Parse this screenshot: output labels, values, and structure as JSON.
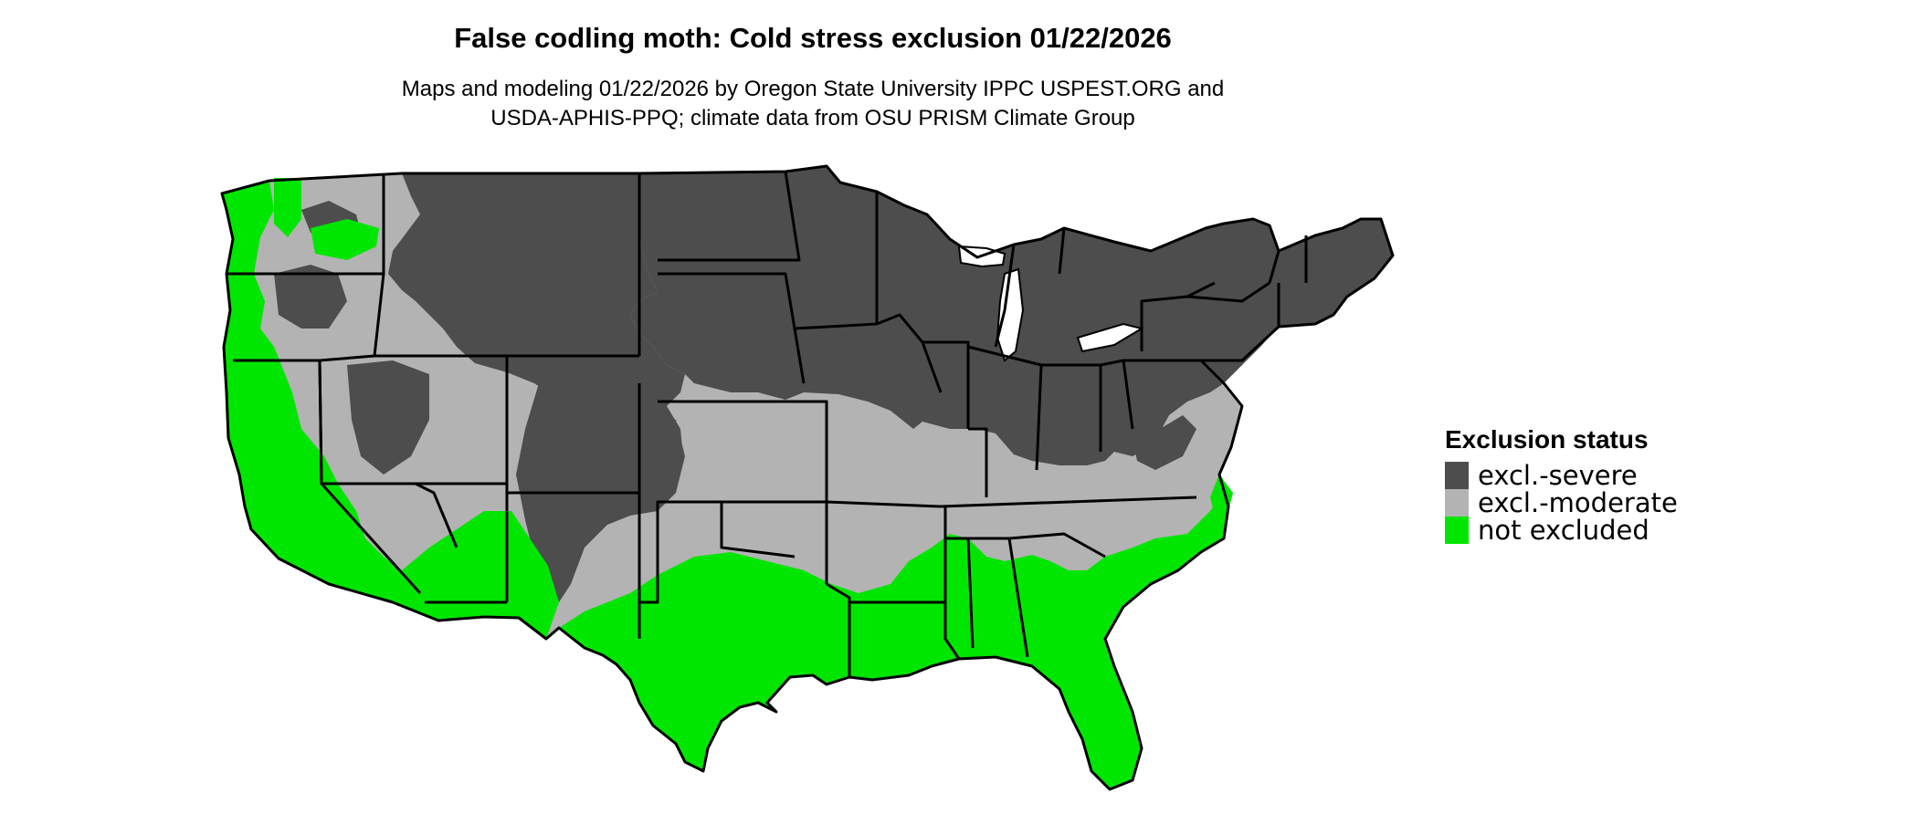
{
  "title": "False codling moth: Cold stress exclusion 01/22/2026",
  "subtitle": {
    "line1": "Maps and modeling 01/22/2026 by Oregon State University IPPC USPEST.ORG and",
    "line2": "USDA-APHIS-PPQ; climate data from OSU PRISM Climate Group"
  },
  "legend": {
    "title": "Exclusion status",
    "items": [
      {
        "label": "excl.-severe",
        "color": "#4d4d4d"
      },
      {
        "label": "excl.-moderate",
        "color": "#b3b3b3"
      },
      {
        "label": "not excluded",
        "color": "#00e600"
      }
    ]
  },
  "map": {
    "region": "Contiguous United States",
    "colors": {
      "severe": "#4d4d4d",
      "moderate": "#b3b3b3",
      "not_excluded": "#00e600",
      "border": "#000000"
    }
  }
}
